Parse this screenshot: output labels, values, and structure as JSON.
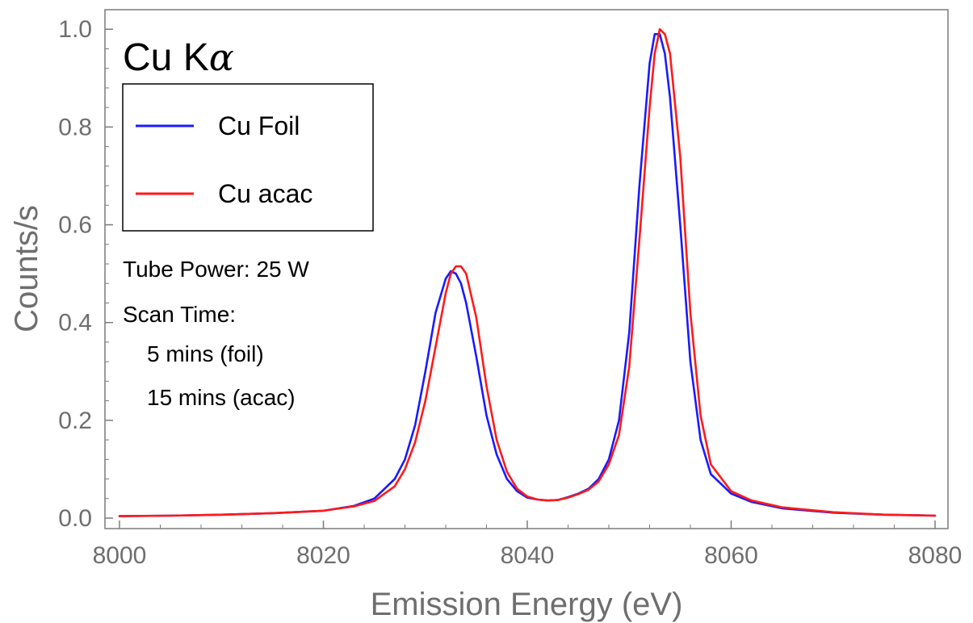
{
  "chart_data": {
    "type": "line",
    "title_main": "Cu K",
    "title_symbol": "α",
    "xlabel": "Emission Energy (eV)",
    "ylabel": "Counts/s",
    "xlim": [
      8000,
      8080
    ],
    "ylim": [
      0,
      1.04
    ],
    "x_ticks": [
      {
        "value": 8000,
        "label": "8000"
      },
      {
        "value": 8020,
        "label": "8020"
      },
      {
        "value": 8040,
        "label": "8040"
      },
      {
        "value": 8060,
        "label": "8060"
      },
      {
        "value": 8080,
        "label": "8080"
      }
    ],
    "y_ticks": [
      {
        "value": 0.0,
        "label": "0.0"
      },
      {
        "value": 0.2,
        "label": "0.2"
      },
      {
        "value": 0.4,
        "label": "0.4"
      },
      {
        "value": 0.6,
        "label": "0.6"
      },
      {
        "value": 0.8,
        "label": "0.8"
      },
      {
        "value": 1.0,
        "label": "1.0"
      }
    ],
    "legend_position": "top-left",
    "grid": false,
    "series": [
      {
        "name": "Cu Foil",
        "color": "#1a1aff",
        "x": [
          8000,
          8005,
          8010,
          8015,
          8020,
          8023,
          8025,
          8027,
          8028,
          8029,
          8030,
          8031,
          8032,
          8032.5,
          8033,
          8033.5,
          8034,
          8035,
          8036,
          8037,
          8038,
          8039,
          8040,
          8041,
          8042,
          8043,
          8044,
          8045,
          8046,
          8047,
          8048,
          8049,
          8050,
          8051,
          8052,
          8052.5,
          8053,
          8053.5,
          8054,
          8055,
          8056,
          8057,
          8058,
          8060,
          8062,
          8065,
          8070,
          8075,
          8080
        ],
        "y": [
          0.004,
          0.005,
          0.007,
          0.01,
          0.015,
          0.025,
          0.04,
          0.08,
          0.12,
          0.19,
          0.3,
          0.42,
          0.49,
          0.505,
          0.5,
          0.48,
          0.44,
          0.33,
          0.21,
          0.13,
          0.08,
          0.055,
          0.042,
          0.038,
          0.036,
          0.037,
          0.043,
          0.05,
          0.06,
          0.08,
          0.12,
          0.2,
          0.38,
          0.68,
          0.93,
          0.99,
          0.99,
          0.95,
          0.86,
          0.6,
          0.32,
          0.16,
          0.09,
          0.05,
          0.033,
          0.02,
          0.011,
          0.007,
          0.005
        ]
      },
      {
        "name": "Cu acac",
        "color": "#ff1a1a",
        "x": [
          8000,
          8005,
          8010,
          8015,
          8020,
          8023,
          8025,
          8027,
          8028,
          8029,
          8030,
          8031,
          8032,
          8032.5,
          8033,
          8033.5,
          8034,
          8035,
          8036,
          8037,
          8038,
          8039,
          8040,
          8041,
          8042,
          8043,
          8044,
          8045,
          8046,
          8047,
          8048,
          8049,
          8050,
          8051,
          8052,
          8052.5,
          8053,
          8053.5,
          8054,
          8055,
          8056,
          8057,
          8058,
          8060,
          8062,
          8065,
          8070,
          8075,
          8080
        ],
        "y": [
          0.004,
          0.005,
          0.007,
          0.01,
          0.015,
          0.024,
          0.035,
          0.065,
          0.1,
          0.155,
          0.24,
          0.35,
          0.46,
          0.5,
          0.515,
          0.515,
          0.5,
          0.41,
          0.27,
          0.16,
          0.095,
          0.06,
          0.044,
          0.038,
          0.036,
          0.037,
          0.042,
          0.049,
          0.058,
          0.075,
          0.11,
          0.17,
          0.31,
          0.57,
          0.84,
          0.95,
          1.0,
          0.99,
          0.95,
          0.74,
          0.42,
          0.21,
          0.11,
          0.055,
          0.036,
          0.022,
          0.012,
          0.007,
          0.005
        ]
      }
    ],
    "annotations": [
      "Tube Power: 25 W",
      "Scan Time:",
      "5 mins (foil)",
      "15 mins (acac)"
    ]
  }
}
